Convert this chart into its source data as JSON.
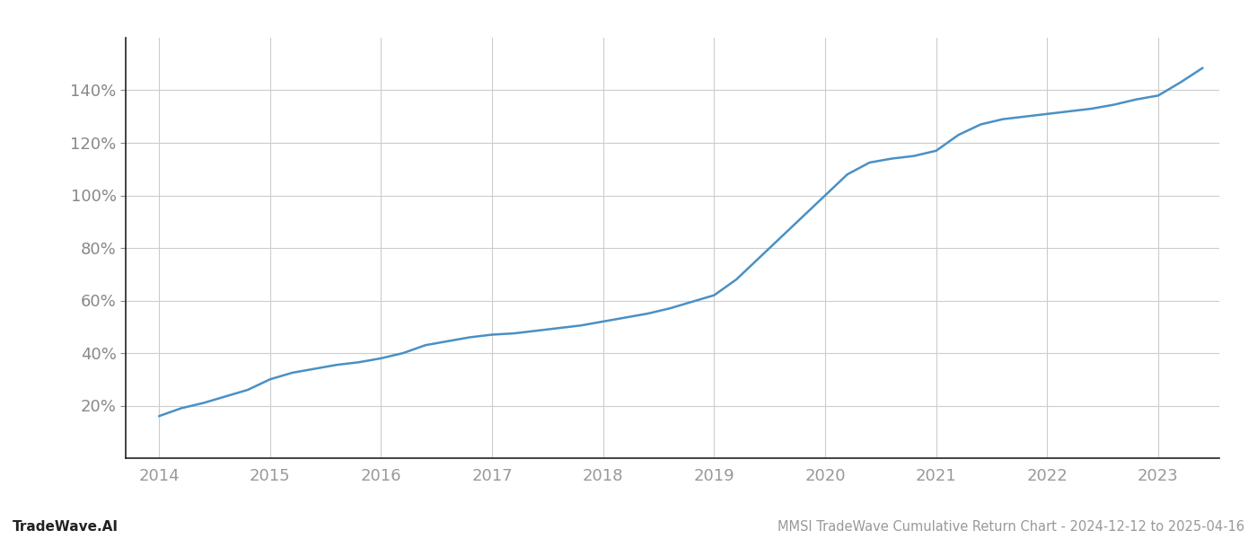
{
  "title": "MMSI TradeWave Cumulative Return Chart - 2024-12-12 to 2025-04-16",
  "watermark": "TradeWave.AI",
  "line_color": "#4a90c4",
  "background_color": "#ffffff",
  "grid_color": "#cccccc",
  "x_years": [
    2014,
    2015,
    2016,
    2017,
    2018,
    2019,
    2020,
    2021,
    2022,
    2023
  ],
  "x_data": [
    2014.0,
    2014.1,
    2014.2,
    2014.4,
    2014.6,
    2014.8,
    2015.0,
    2015.2,
    2015.4,
    2015.6,
    2015.8,
    2016.0,
    2016.2,
    2016.4,
    2016.6,
    2016.8,
    2017.0,
    2017.2,
    2017.4,
    2017.6,
    2017.8,
    2018.0,
    2018.2,
    2018.4,
    2018.6,
    2018.8,
    2019.0,
    2019.2,
    2019.4,
    2019.6,
    2019.8,
    2020.0,
    2020.2,
    2020.4,
    2020.6,
    2020.8,
    2021.0,
    2021.2,
    2021.4,
    2021.6,
    2021.8,
    2022.0,
    2022.2,
    2022.4,
    2022.6,
    2022.8,
    2023.0,
    2023.2,
    2023.4
  ],
  "y_data": [
    16.0,
    17.5,
    19.0,
    21.0,
    23.5,
    26.0,
    30.0,
    32.5,
    34.0,
    35.5,
    36.5,
    38.0,
    40.0,
    43.0,
    44.5,
    46.0,
    47.0,
    47.5,
    48.5,
    49.5,
    50.5,
    52.0,
    53.5,
    55.0,
    57.0,
    59.5,
    62.0,
    68.0,
    76.0,
    84.0,
    92.0,
    100.0,
    108.0,
    112.5,
    114.0,
    115.0,
    117.0,
    123.0,
    127.0,
    129.0,
    130.0,
    131.0,
    132.0,
    133.0,
    134.5,
    136.5,
    138.0,
    143.0,
    148.5
  ],
  "ylim": [
    0,
    160
  ],
  "yticks": [
    20,
    40,
    60,
    80,
    100,
    120,
    140
  ],
  "xlim": [
    2013.7,
    2023.55
  ],
  "line_width": 1.8,
  "title_fontsize": 10.5,
  "watermark_fontsize": 11,
  "tick_fontsize": 13,
  "tick_color": "#999999",
  "spine_color": "#222222",
  "label_color": "#888888"
}
